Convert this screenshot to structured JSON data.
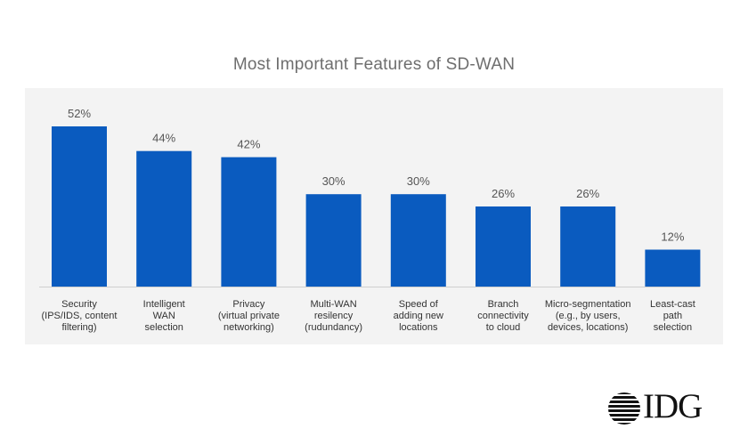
{
  "chart_data": {
    "type": "bar",
    "title": "Most Important Features of SD-WAN",
    "categories": [
      [
        "Security",
        "(IPS/IDS, content",
        "filtering)"
      ],
      [
        "Intelligent",
        "WAN",
        "selection"
      ],
      [
        "Privacy",
        "(virtual private",
        "networking)"
      ],
      [
        "Multi-WAN",
        "resilency",
        "(rudundancy)"
      ],
      [
        "Speed of",
        "adding new",
        "locations"
      ],
      [
        "Branch",
        "connectivity",
        "to cloud"
      ],
      [
        "Micro-segmentation",
        "(e.g., by users,",
        "devices, locations)"
      ],
      [
        "Least-cast",
        "path",
        "selection"
      ]
    ],
    "values": [
      52,
      44,
      42,
      30,
      30,
      26,
      26,
      12
    ],
    "value_labels": [
      "52%",
      "44%",
      "42%",
      "30%",
      "30%",
      "26%",
      "26%",
      "12%"
    ],
    "bar_color": "#0a5bbf",
    "ylim": [
      0,
      52
    ]
  },
  "logo": {
    "text": "IDG"
  }
}
